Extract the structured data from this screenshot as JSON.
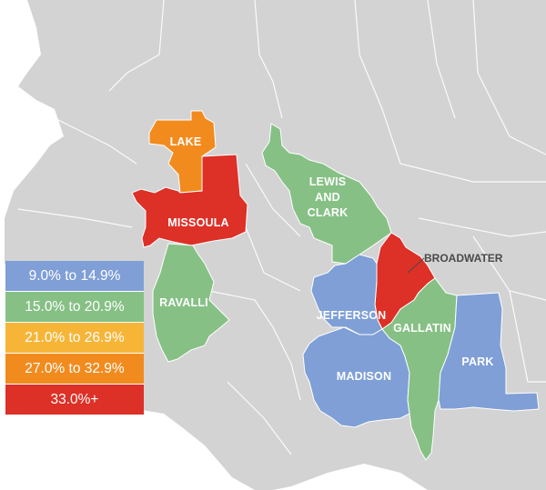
{
  "colors": {
    "background_land": "#d3d3d3",
    "border": "#ffffff",
    "blue": "#7f9fd6",
    "green": "#86c085",
    "yellow": "#f7b538",
    "orange": "#f28b1e",
    "red": "#dd3027"
  },
  "legend": {
    "items": [
      {
        "label": "9.0% to 14.9%",
        "color": "#7f9fd6"
      },
      {
        "label": "15.0% to 20.9%",
        "color": "#86c085"
      },
      {
        "label": "21.0% to 26.9%",
        "color": "#f7b538"
      },
      {
        "label": "27.0% to 32.9%",
        "color": "#f28b1e"
      },
      {
        "label": "33.0%+",
        "color": "#dd3027"
      }
    ]
  },
  "counties": {
    "lake": {
      "label": "LAKE",
      "color": "#f28b1e"
    },
    "missoula": {
      "label": "MISSOULA",
      "color": "#dd3027"
    },
    "lewis_clark": {
      "label_line1": "LEWIS",
      "label_line2": "AND",
      "label_line3": "CLARK",
      "color": "#86c085"
    },
    "broadwater": {
      "label": "BROADWATER",
      "color": "#dd3027"
    },
    "ravalli": {
      "label": "RAVALLI",
      "color": "#86c085"
    },
    "jefferson": {
      "label": "JEFFERSON",
      "color": "#7f9fd6"
    },
    "gallatin": {
      "label": "GALLATIN",
      "color": "#86c085"
    },
    "madison": {
      "label": "MADISON",
      "color": "#7f9fd6"
    },
    "park": {
      "label": "PARK",
      "color": "#7f9fd6"
    }
  }
}
